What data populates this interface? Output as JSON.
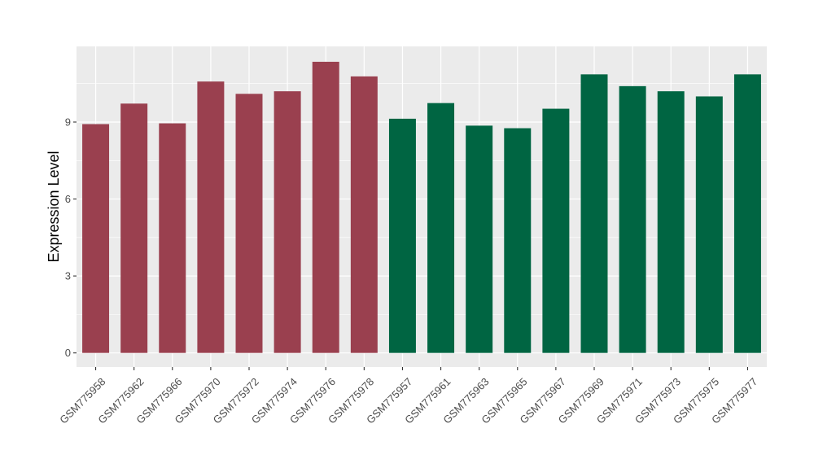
{
  "chart_data": {
    "type": "bar",
    "title": "",
    "xlabel": "",
    "ylabel": "Expression Level",
    "ylim": [
      -0.55,
      11.95
    ],
    "yticks": [
      0,
      3,
      6,
      9
    ],
    "grid": true,
    "panel_background": "#ebebeb",
    "colors": {
      "group_a": "#9a404f",
      "group_b": "#006542"
    },
    "categories": [
      "GSM775958",
      "GSM775962",
      "GSM775966",
      "GSM775970",
      "GSM775972",
      "GSM775974",
      "GSM775976",
      "GSM775978",
      "GSM775957",
      "GSM775961",
      "GSM775963",
      "GSM775965",
      "GSM775967",
      "GSM775969",
      "GSM775971",
      "GSM775973",
      "GSM775975",
      "GSM775977"
    ],
    "values": [
      8.92,
      9.72,
      8.95,
      10.58,
      10.1,
      10.2,
      11.35,
      10.78,
      9.13,
      9.74,
      8.86,
      8.76,
      9.52,
      10.86,
      10.4,
      10.2,
      10.0,
      10.86
    ],
    "groups": [
      "a",
      "a",
      "a",
      "a",
      "a",
      "a",
      "a",
      "a",
      "b",
      "b",
      "b",
      "b",
      "b",
      "b",
      "b",
      "b",
      "b",
      "b"
    ]
  }
}
